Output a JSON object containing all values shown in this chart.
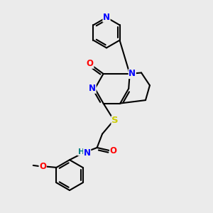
{
  "bg_color": "#ebebeb",
  "atom_colors": {
    "N": "#0000ff",
    "O": "#ff0000",
    "S": "#cccc00",
    "H": "#008080",
    "C": "#000000"
  },
  "bond_color": "#000000",
  "bond_width": 1.5,
  "font_size": 8.5
}
